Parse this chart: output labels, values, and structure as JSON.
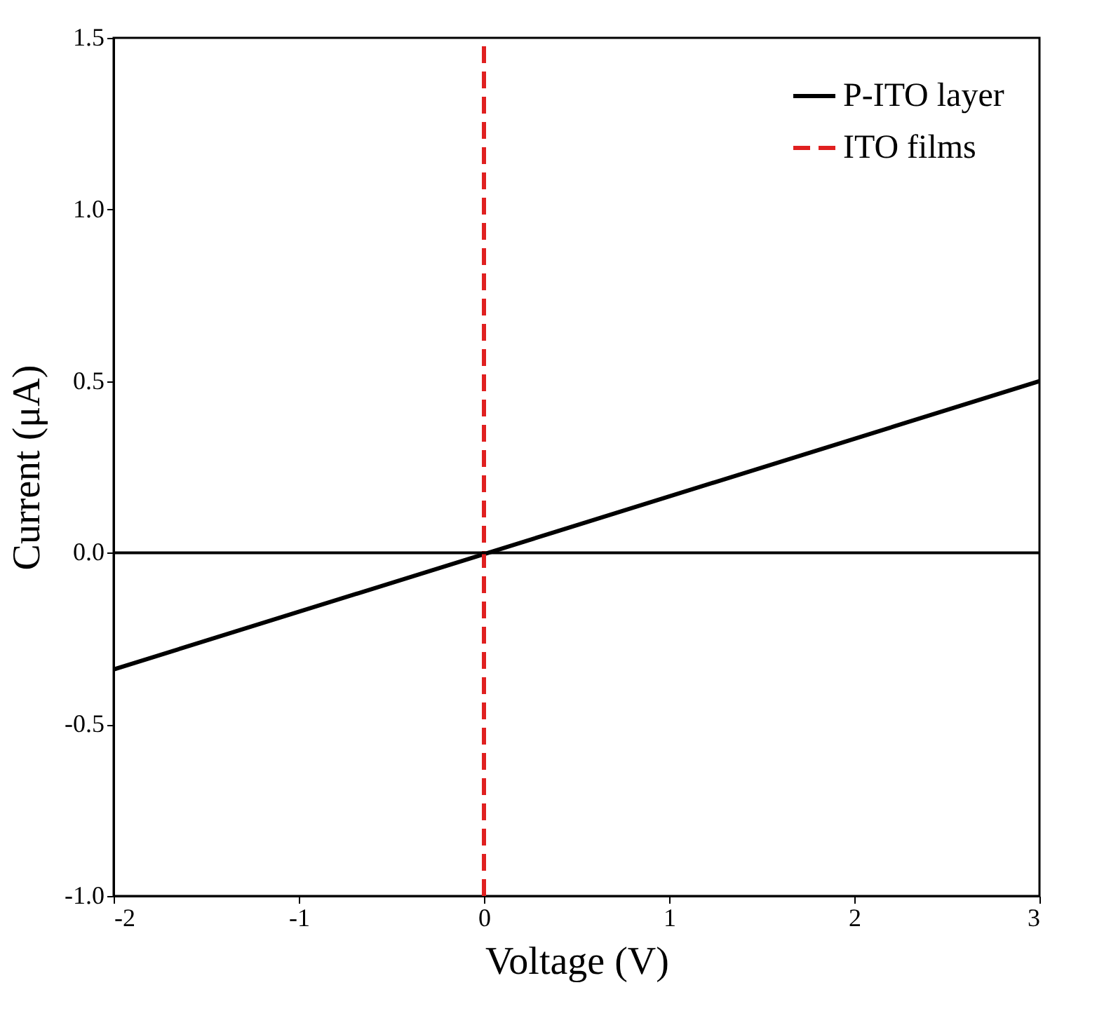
{
  "chart_data": {
    "type": "line",
    "xlabel": "Voltage (V)",
    "ylabel": "Current (μA)",
    "xlim": [
      -2,
      3
    ],
    "xticks": [
      -2,
      -1,
      0,
      1,
      2,
      3
    ],
    "ylim": [
      -1,
      1.5
    ],
    "yticks": [
      {
        "value": -1,
        "label": "-1.0"
      },
      {
        "value": -0.5,
        "label": "-0.5"
      },
      {
        "value": 0,
        "label": "0.0"
      },
      {
        "value": 0.5,
        "label": "0.5"
      },
      {
        "value": 1,
        "label": "1.0"
      },
      {
        "value": 1.5,
        "label": "1.5"
      }
    ],
    "grid": false,
    "legend": "top right",
    "ref_lines": [
      {
        "axis": "y",
        "value": 0,
        "label": null,
        "color": "#000000"
      }
    ],
    "series": [
      {
        "name": "P-ITO layer",
        "color": "#000000",
        "line_style": "solid",
        "x": [
          -2,
          3
        ],
        "values": [
          -0.34,
          0.5
        ]
      },
      {
        "name": "ITO films",
        "color": "#e02020",
        "line_style": "dashed",
        "x": [
          0,
          0
        ],
        "values": [
          -1,
          1.5
        ]
      }
    ]
  }
}
